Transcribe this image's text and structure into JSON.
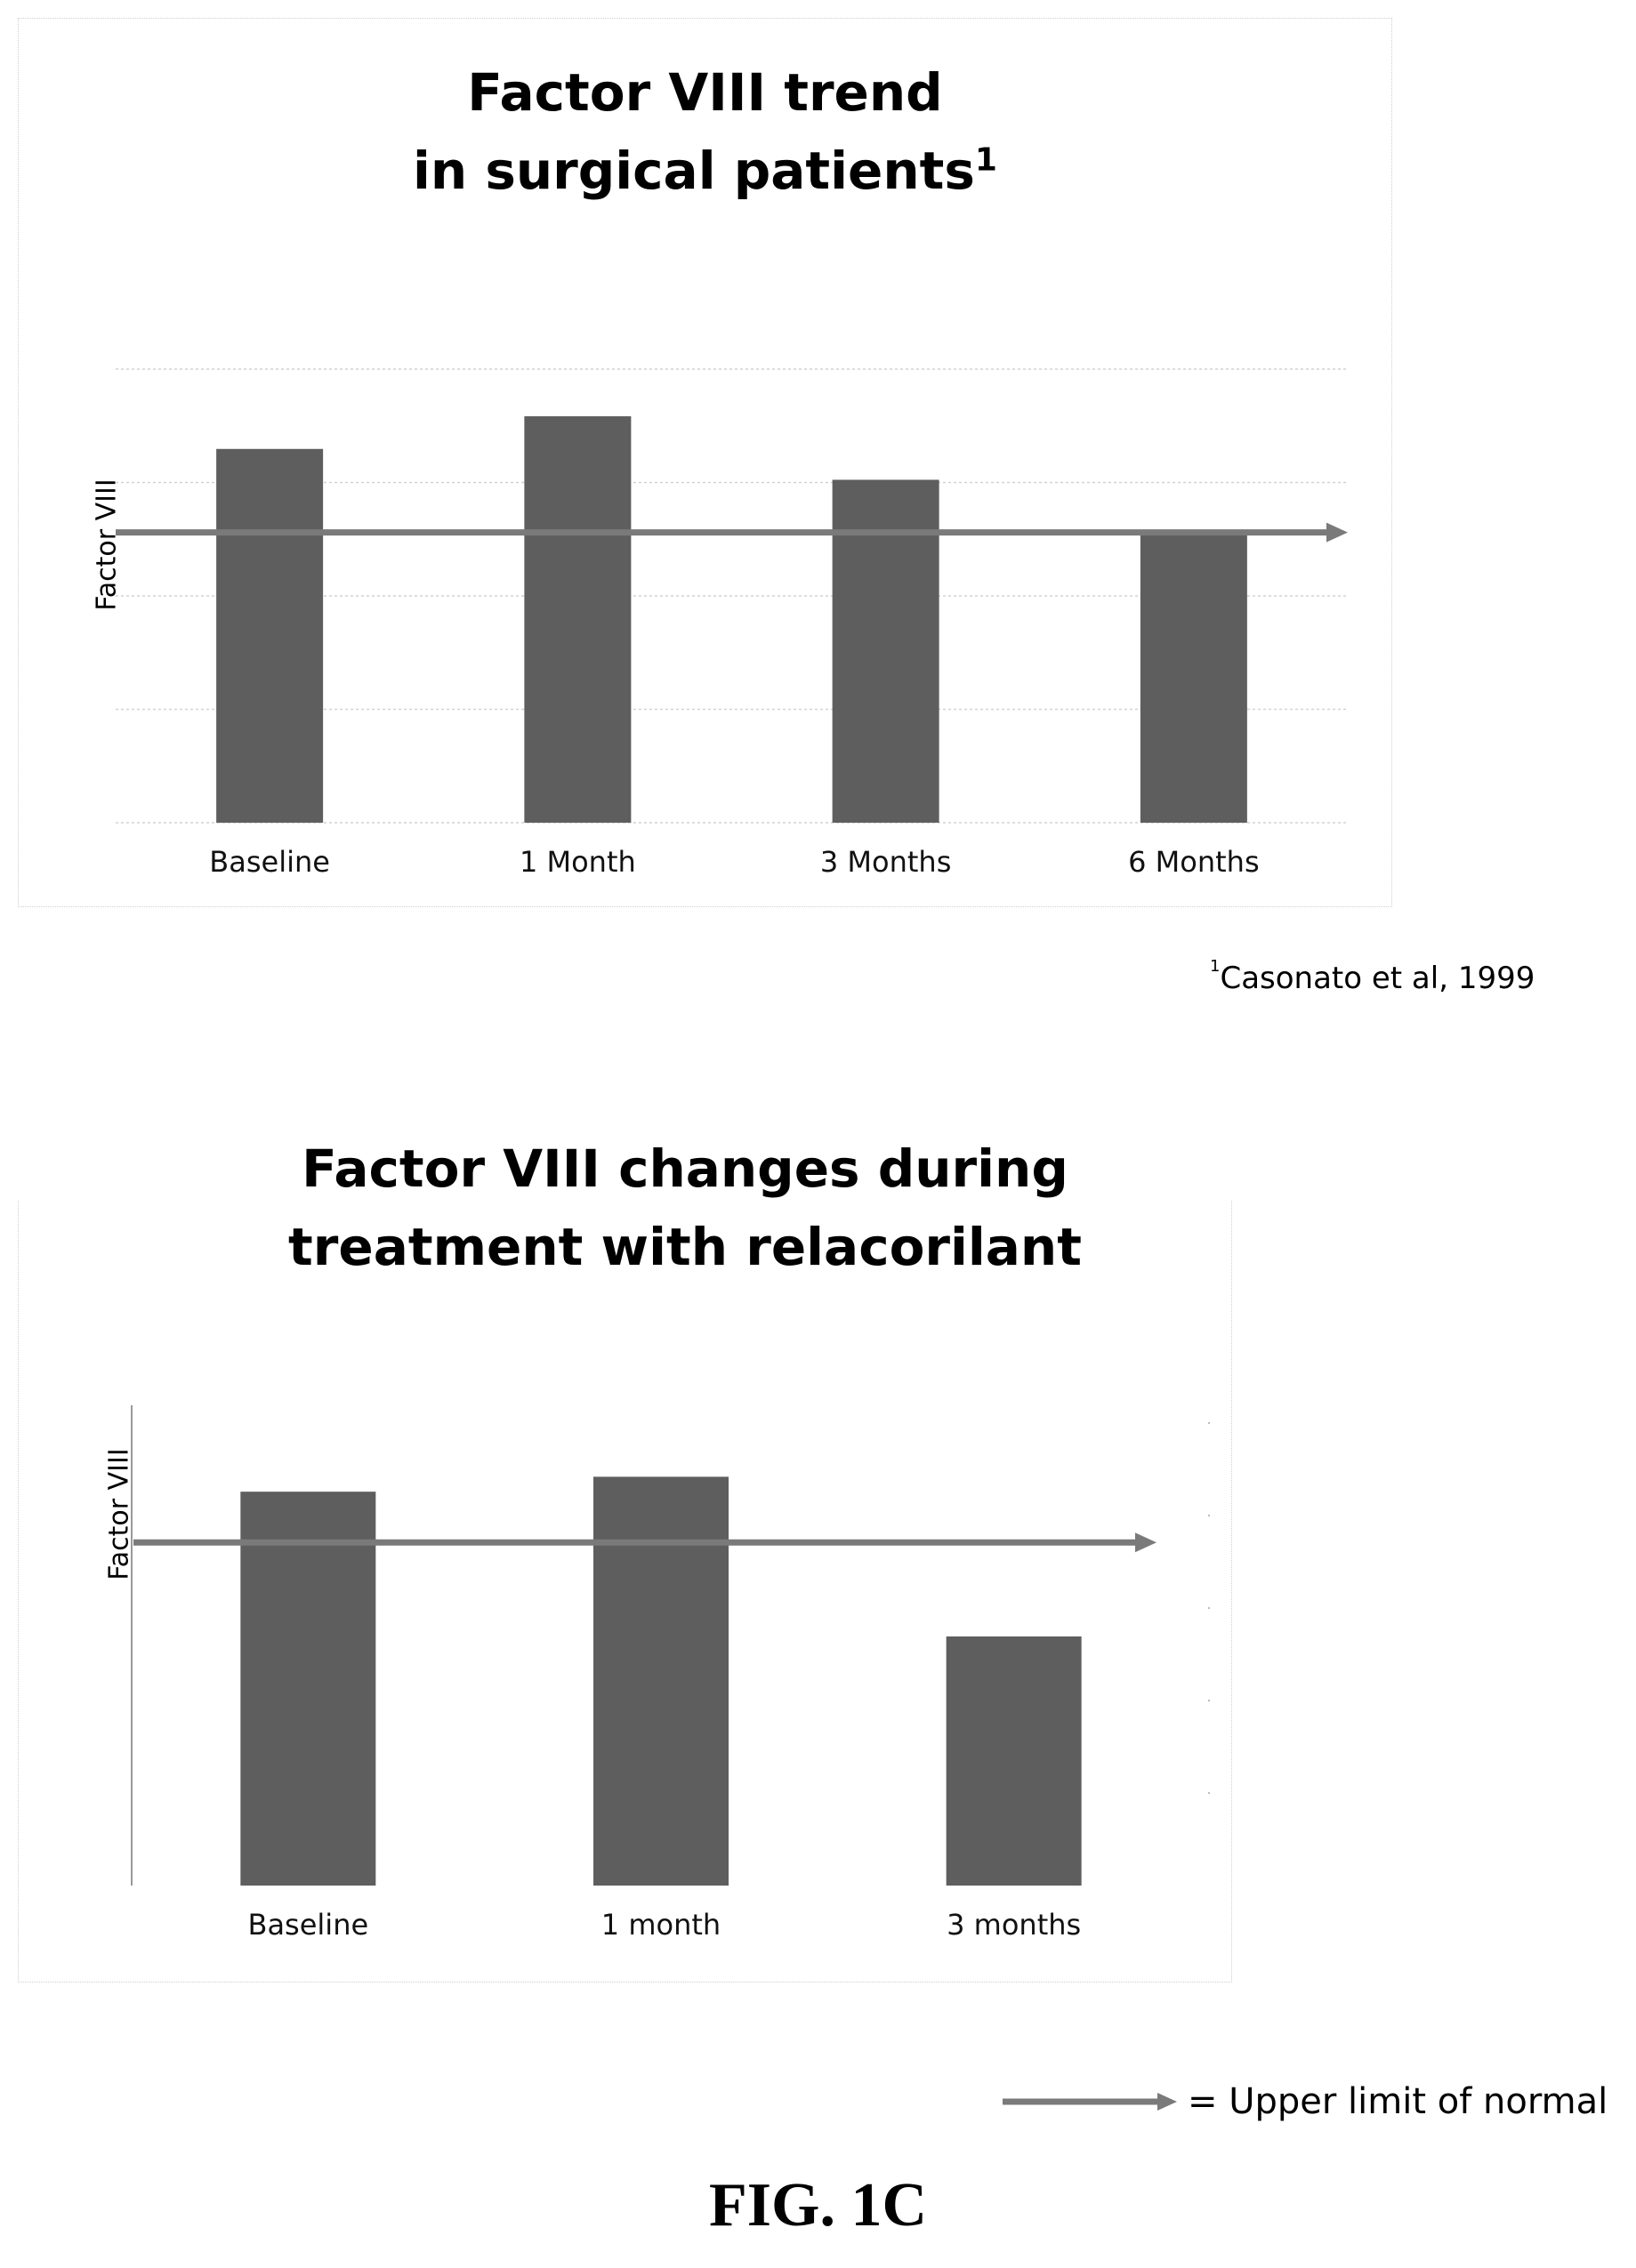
{
  "chart_data": [
    {
      "type": "bar",
      "title": "Factor VIII trend",
      "title_line2": "in surgical patients",
      "title_superscript": "1",
      "ylabel": "Factor VIII",
      "categories": [
        "Baseline",
        "1 Month",
        "3 Months",
        "6 Months"
      ],
      "values": [
        4.12,
        4.48,
        3.78,
        3.17
      ],
      "ylim": [
        0,
        5
      ],
      "grid": true,
      "reference_line": {
        "value": 3.2,
        "meaning": "Upper limit of normal"
      },
      "bar_color": "#5e5e5e",
      "arrow_color": "#7a7a7a"
    },
    {
      "type": "bar",
      "title": "Factor VIII changes during",
      "title_line2": "treatment with relacorilant",
      "ylabel": "Factor VIII",
      "categories": [
        "Baseline",
        "1 month",
        "3 months"
      ],
      "values": [
        5.28,
        5.48,
        3.34
      ],
      "ylim": [
        0,
        6.2
      ],
      "grid": false,
      "reference_line": {
        "value": 4.6,
        "meaning": "Upper limit of normal"
      },
      "bar_color": "#5e5e5e",
      "arrow_color": "#7a7a7a"
    }
  ],
  "footnote": {
    "marker": "1",
    "text": "Casonato et al, 1999"
  },
  "legend": {
    "text": "= Upper limit of normal"
  },
  "figure_label": "FIG. 1C"
}
